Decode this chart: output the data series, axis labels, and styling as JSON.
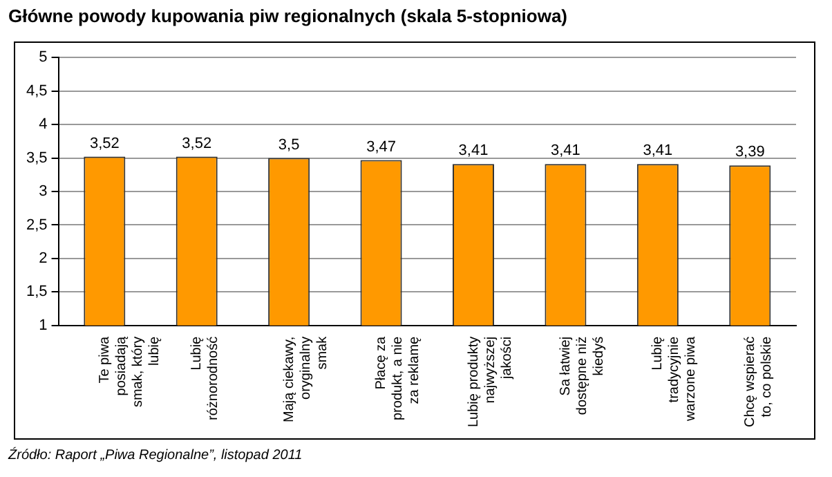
{
  "chart_data": {
    "type": "bar",
    "title": "Główne powody kupowania piw regionalnych (skala 5-stopniowa)",
    "categories": [
      "Te piwa posiadają smak, który lubię",
      "Lubię różnorodność",
      "Mają ciekawy, oryginalny smak",
      "Płacę za produkt, a nie za reklamę",
      "Lubię produkty najwyższej jakości",
      "Sa łatwiej dostępne niż kiedyś",
      "Lubię tradycyjnie warzone piwa",
      "Chcę wspierać to, co polskie"
    ],
    "values": [
      3.52,
      3.52,
      3.5,
      3.47,
      3.41,
      3.41,
      3.41,
      3.39
    ],
    "value_labels": [
      "3,52",
      "3,52",
      "3,5",
      "3,47",
      "3,41",
      "3,41",
      "3,41",
      "3,39"
    ],
    "color": "#ff9900",
    "ylim": [
      1,
      5
    ],
    "yticks": [
      1,
      {
        "value": 1.5,
        "label": "1,5"
      },
      2,
      {
        "value": 2.5,
        "label": "2,5"
      },
      3,
      {
        "value": 3.5,
        "label": "3,5"
      },
      4,
      {
        "value": 4.5,
        "label": "4,5"
      },
      5
    ],
    "grid": "y",
    "legend": false,
    "annotations": [
      "Źródło: Raport „Piwa Regionalne”, listopad 2011"
    ]
  }
}
